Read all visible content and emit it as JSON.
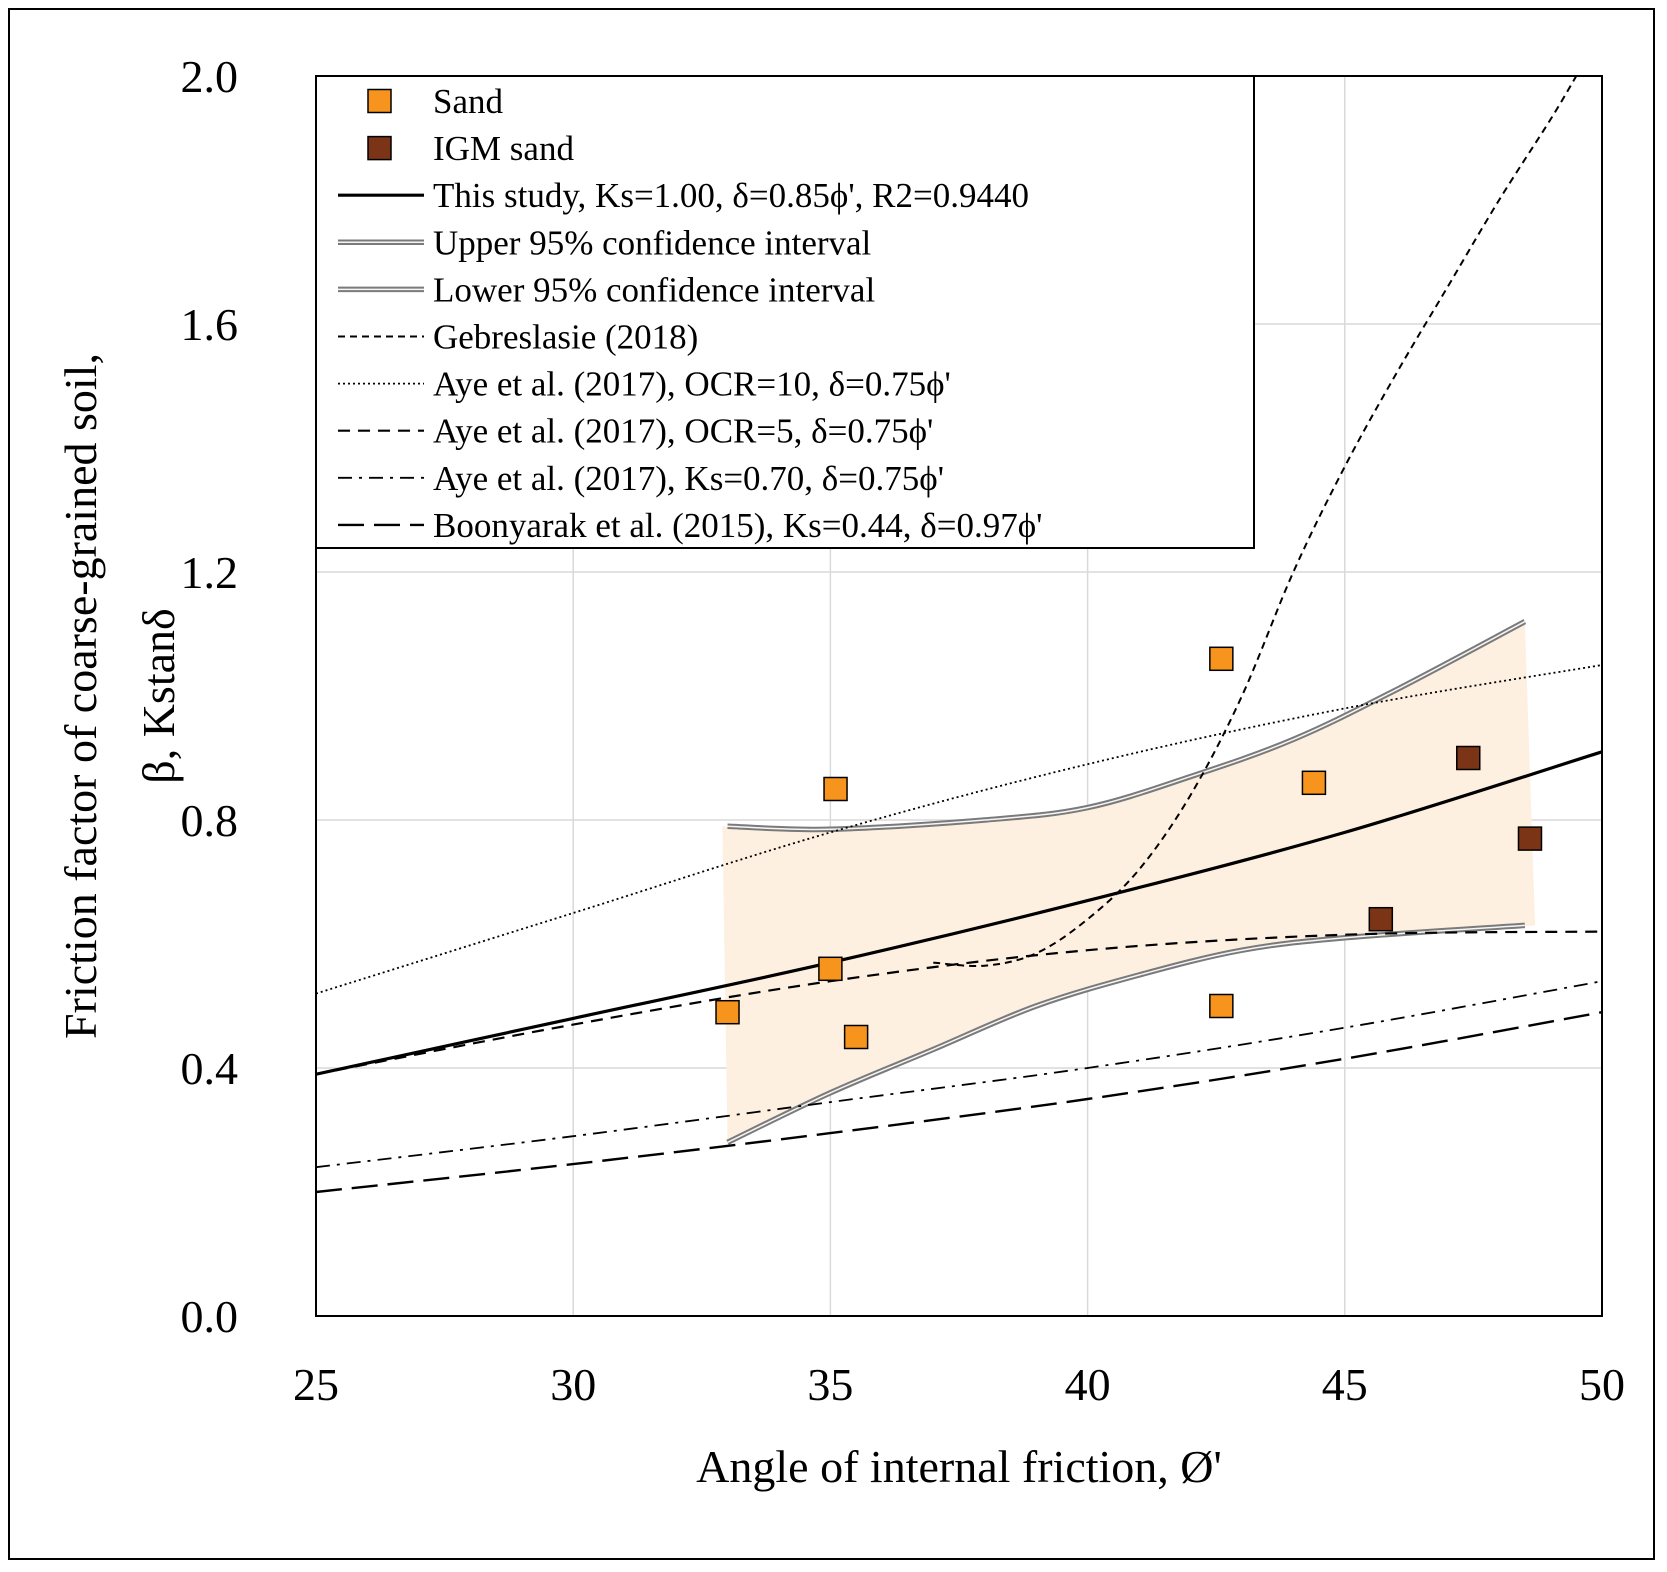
{
  "chart_data": {
    "type": "scatter",
    "xlabel": "Angle of internal friction, Ø'",
    "ylabel_line1": "Friction factor of coarse-grained soil,",
    "ylabel_line2": "β, Kstanδ",
    "xlim": [
      25,
      50
    ],
    "ylim": [
      0.0,
      2.0
    ],
    "x_ticks": [
      "25",
      "30",
      "35",
      "40",
      "45",
      "50"
    ],
    "y_ticks": [
      "0.0",
      "0.4",
      "0.8",
      "1.2",
      "1.6",
      "2.0"
    ],
    "grid": true,
    "legend_position": "top-left",
    "legend": [
      "Sand",
      "IGM sand",
      "This study, Ks=1.00,  δ=0.85ϕ', R2=0.9440",
      "Upper 95% confidence interval",
      "Lower 95% confidence interval",
      "Gebreslasie (2018)",
      "Aye et al. (2017), OCR=10, δ=0.75ϕ'",
      "Aye et al. (2017), OCR=5, δ=0.75ϕ'",
      "Aye et al. (2017), Ks=0.70, δ=0.75ϕ'",
      "Boonyarak et al. (2015), Ks=0.44, δ=0.97ϕ'"
    ],
    "points": [
      {
        "series": "Sand",
        "color": "#f7941d",
        "data": [
          [
            33.0,
            0.49
          ],
          [
            35.0,
            0.56
          ],
          [
            35.1,
            0.85
          ],
          [
            35.5,
            0.45
          ],
          [
            42.6,
            1.06
          ],
          [
            42.6,
            0.5
          ],
          [
            44.4,
            0.86
          ]
        ]
      },
      {
        "series": "IGM sand",
        "color": "#7b3416",
        "data": [
          [
            45.7,
            0.64
          ],
          [
            47.4,
            0.9
          ],
          [
            48.6,
            0.77
          ]
        ]
      }
    ],
    "series": [
      {
        "name": "This study, Ks=1.00,  δ=0.85ϕ', R2=0.9440",
        "style": "solid",
        "x": [
          25,
          30,
          35,
          40,
          45,
          50
        ],
        "y": [
          0.39,
          0.48,
          0.57,
          0.67,
          0.78,
          0.91
        ]
      },
      {
        "name": "Upper 95% confidence interval",
        "style": "double",
        "x": [
          33,
          35,
          38,
          40,
          42,
          44,
          46,
          48.5
        ],
        "y": [
          0.79,
          0.785,
          0.8,
          0.82,
          0.87,
          0.93,
          1.01,
          1.12
        ]
      },
      {
        "name": "Lower 95% confidence interval",
        "style": "double",
        "x": [
          33,
          35,
          37,
          39,
          41,
          43,
          45,
          48.5
        ],
        "y": [
          0.28,
          0.36,
          0.43,
          0.5,
          0.55,
          0.59,
          0.61,
          0.63
        ]
      },
      {
        "name": "Gebreslasie (2018)",
        "style": "short-dash",
        "x": [
          37,
          38,
          39,
          40,
          41,
          42,
          43,
          44,
          45,
          46,
          47,
          48,
          49,
          49.5
        ],
        "y": [
          0.57,
          0.565,
          0.585,
          0.64,
          0.72,
          0.84,
          1.0,
          1.2,
          1.37,
          1.52,
          1.66,
          1.8,
          1.93,
          2.0
        ]
      },
      {
        "name": "Aye et al. (2017), OCR=10, δ=0.75ϕ'",
        "style": "dotted",
        "x": [
          25,
          30,
          35,
          40,
          45,
          50
        ],
        "y": [
          0.52,
          0.65,
          0.78,
          0.89,
          0.98,
          1.05
        ]
      },
      {
        "name": "Aye et al. (2017), OCR=5, δ=0.75ϕ'",
        "style": "dashed",
        "x": [
          25,
          30,
          35,
          40,
          45,
          50
        ],
        "y": [
          0.39,
          0.47,
          0.54,
          0.59,
          0.615,
          0.62
        ]
      },
      {
        "name": "Aye et al. (2017), Ks=0.70, δ=0.75ϕ'",
        "style": "dash-dot",
        "x": [
          25,
          30,
          35,
          40,
          45,
          50
        ],
        "y": [
          0.24,
          0.29,
          0.345,
          0.4,
          0.465,
          0.54
        ]
      },
      {
        "name": "Boonyarak et al. (2015), Ks=0.44, δ=0.97ϕ'",
        "style": "long-dash",
        "x": [
          25,
          30,
          35,
          40,
          45,
          50
        ],
        "y": [
          0.2,
          0.245,
          0.295,
          0.35,
          0.415,
          0.49
        ]
      }
    ],
    "band": {
      "fill": "#fdf0e1",
      "upper": {
        "x": [
          32.9,
          35,
          38,
          40,
          42,
          44,
          46,
          48.5
        ],
        "y": [
          0.79,
          0.785,
          0.8,
          0.82,
          0.87,
          0.93,
          1.01,
          1.12
        ]
      },
      "lower": {
        "x": [
          33.0,
          35,
          37,
          39,
          41,
          43,
          45,
          48.7
        ],
        "y": [
          0.28,
          0.36,
          0.43,
          0.5,
          0.55,
          0.59,
          0.61,
          0.63
        ]
      }
    }
  }
}
